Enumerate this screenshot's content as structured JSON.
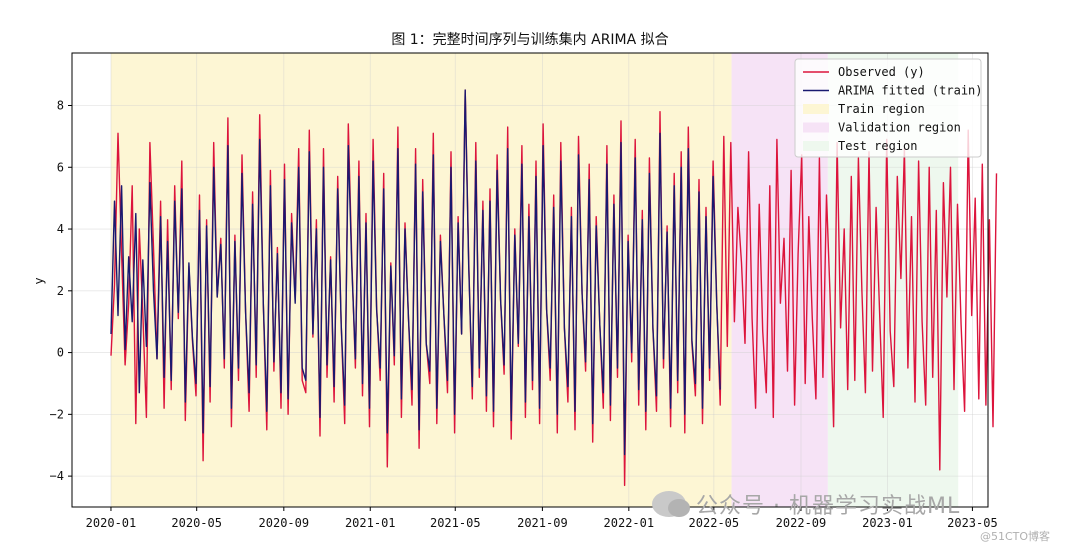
{
  "chart_data": {
    "type": "line",
    "title": "图 1：完整时间序列与训练集内 ARIMA 拟合",
    "xlabel": "",
    "ylabel": "y",
    "xlim": [
      "2019-11-07",
      "2023-05-23"
    ],
    "ylim": [
      -5,
      9.7
    ],
    "yticks": [
      -4,
      -2,
      0,
      2,
      4,
      6,
      8
    ],
    "xticks": [
      "2020-01",
      "2020-05",
      "2020-09",
      "2021-01",
      "2021-05",
      "2021-09",
      "2022-01",
      "2022-05",
      "2022-09",
      "2023-01",
      "2023-05"
    ],
    "grid": true,
    "start_date": "2020-01-01",
    "freq_days": 5,
    "regions": [
      {
        "name": "Train region",
        "start": "2020-01-01",
        "end": "2022-05-26",
        "color": "#fdf6d4"
      },
      {
        "name": "Validation region",
        "start": "2022-05-26",
        "end": "2022-10-09",
        "color": "#f6e3f6"
      },
      {
        "name": "Test region",
        "start": "2022-10-09",
        "end": "2023-04-11",
        "color": "#eef8ee"
      }
    ],
    "train_points": 176,
    "series": [
      {
        "name": "Observed (y)",
        "color": "#dc143c",
        "values": [
          -0.1,
          2.2,
          7.1,
          3.2,
          -0.4,
          1.6,
          5.4,
          -2.3,
          4.0,
          1.3,
          -2.1,
          6.8,
          3.4,
          -0.2,
          4.9,
          -1.8,
          4.3,
          -1.2,
          5.4,
          1.1,
          6.2,
          -2.2,
          2.8,
          0.4,
          -1.4,
          5.1,
          -3.5,
          4.3,
          -1.6,
          6.8,
          1.8,
          3.7,
          -0.5,
          7.6,
          -2.4,
          3.8,
          -0.9,
          6.4,
          1.3,
          -1.9,
          5.2,
          -0.8,
          7.7,
          1.6,
          -2.5,
          5.9,
          -0.6,
          3.4,
          -1.8,
          6.1,
          -2.0,
          4.5,
          1.7,
          6.6,
          -0.9,
          -1.3,
          7.2,
          0.5,
          4.3,
          -2.7,
          6.6,
          -0.8,
          3.1,
          -1.6,
          5.7,
          0.9,
          -2.3,
          7.4,
          3.0,
          -0.5,
          6.2,
          -1.4,
          4.5,
          -2.4,
          6.9,
          1.5,
          -0.9,
          5.8,
          -3.7,
          2.9,
          -0.4,
          7.3,
          -2.1,
          4.2,
          1.1,
          -1.7,
          6.6,
          -3.1,
          5.6,
          0.3,
          -1.0,
          7.1,
          -2.3,
          3.8,
          1.2,
          -1.3,
          6.5,
          -2.6,
          4.4,
          0.6,
          8.5,
          3.0,
          -1.5,
          6.8,
          -0.8,
          4.9,
          -1.9,
          5.3,
          -2.4,
          6.4,
          1.7,
          -0.7,
          7.3,
          -2.8,
          4.0,
          0.2,
          6.7,
          -2.1,
          4.8,
          -1.2,
          6.2,
          -2.3,
          7.4,
          1.4,
          -0.9,
          5.1,
          -2.6,
          6.8,
          0.8,
          -1.6,
          4.7,
          -2.5,
          7.0,
          1.9,
          -0.6,
          6.1,
          -2.9,
          4.4,
          0.9,
          -1.8,
          6.7,
          -2.2,
          5.1,
          -0.8,
          7.5,
          -4.3,
          3.8,
          -0.3,
          6.9,
          -1.7,
          4.6,
          -2.5,
          6.3,
          0.8,
          -1.9,
          7.8,
          -0.5,
          4.1,
          -2.4,
          5.8,
          -1.3,
          6.5,
          -2.6,
          7.3,
          0.3,
          -1.4,
          5.6,
          -2.3,
          4.7,
          -0.9,
          6.2,
          1.7,
          -1.7,
          7.0,
          0.2,
          6.8,
          1.0,
          4.7,
          2.9,
          0.3,
          6.5,
          1.1,
          -1.8,
          4.8,
          0.7,
          -1.3,
          5.4,
          -2.1,
          6.9,
          1.6,
          3.7,
          -0.6,
          5.9,
          -1.7,
          3.2,
          6.4,
          -1.0,
          4.4,
          1.1,
          -1.5,
          6.3,
          -0.8,
          5.1,
          1.9,
          -2.4,
          6.8,
          0.8,
          4.0,
          -1.2,
          5.7,
          -0.9,
          6.3,
          2.0,
          -1.3,
          6.5,
          -0.6,
          4.7,
          1.3,
          -2.1,
          6.9,
          0.7,
          -1.1,
          5.7,
          2.4,
          6.6,
          -0.5,
          4.4,
          -1.6,
          6.2,
          1.0,
          -1.7,
          6.0,
          -0.8,
          4.6,
          -3.8,
          5.5,
          1.8,
          6.0,
          -1.2,
          4.8,
          0.9,
          -1.9,
          7.2,
          1.2,
          5.0,
          -1.5,
          6.1,
          -1.7,
          4.3,
          -2.4,
          5.8
        ]
      },
      {
        "name": "ARIMA fitted (train)",
        "color": "#191970",
        "values": [
          0.6,
          4.9,
          1.2,
          5.4,
          0.1,
          3.1,
          1.0,
          4.5,
          -1.3,
          3.0,
          0.2,
          5.5,
          2.0,
          -0.2,
          4.4,
          -0.8,
          3.6,
          -0.9,
          4.9,
          1.3,
          5.3,
          -1.6,
          2.9,
          0.5,
          -1.0,
          4.6,
          -2.6,
          4.1,
          -1.1,
          6.0,
          1.8,
          3.5,
          -0.2,
          6.7,
          -1.8,
          3.6,
          -0.5,
          5.8,
          1.3,
          -1.3,
          4.8,
          -0.4,
          6.9,
          1.6,
          -1.9,
          5.4,
          -0.3,
          3.2,
          -1.3,
          5.6,
          -1.5,
          4.2,
          1.6,
          6.0,
          -0.5,
          -0.9,
          6.5,
          0.6,
          4.0,
          -2.1,
          6.0,
          -0.4,
          3.0,
          -1.1,
          5.3,
          0.9,
          -1.7,
          6.7,
          2.8,
          -0.2,
          5.7,
          -1.0,
          4.2,
          -1.8,
          6.2,
          1.4,
          -0.5,
          5.3,
          -2.6,
          2.8,
          -0.1,
          6.6,
          -1.5,
          4.0,
          1.1,
          -1.2,
          6.1,
          -2.5,
          5.2,
          0.3,
          -0.6,
          6.4,
          -1.8,
          3.6,
          1.2,
          -0.9,
          6.0,
          -2.0,
          4.2,
          0.6,
          8.5,
          2.8,
          -1.1,
          6.2,
          -0.5,
          4.6,
          -1.4,
          4.9,
          -1.9,
          5.9,
          1.7,
          -0.4,
          6.6,
          -2.2,
          3.8,
          0.3,
          6.1,
          -1.6,
          4.4,
          -0.9,
          5.7,
          -1.8,
          6.7,
          1.4,
          -0.5,
          4.7,
          -2.0,
          6.2,
          0.8,
          -1.1,
          4.4,
          -1.9,
          6.4,
          1.9,
          -0.3,
          5.6,
          -2.3,
          4.1,
          0.9,
          -1.3,
          6.1,
          -1.7,
          4.8,
          -0.5,
          6.8,
          -3.3,
          3.6,
          0.0,
          6.3,
          -1.2,
          4.3,
          -1.9,
          5.8,
          0.8,
          -1.4,
          7.1,
          -0.2,
          3.9,
          -1.8,
          5.4,
          -0.9,
          6.0,
          -2.0,
          6.6,
          0.4,
          -1.0,
          5.2,
          -1.8,
          4.4,
          -0.5,
          5.7,
          1.6,
          -1.2
        ]
      }
    ],
    "legend": {
      "position": "top-right",
      "entries": [
        "Observed (y)",
        "ARIMA fitted (train)",
        "Train region",
        "Validation region",
        "Test region"
      ]
    }
  },
  "watermark": {
    "text": "公众号 · 机器学习实战ML",
    "icon": "wechat-icon"
  },
  "site_credit": "@51CTO博客"
}
